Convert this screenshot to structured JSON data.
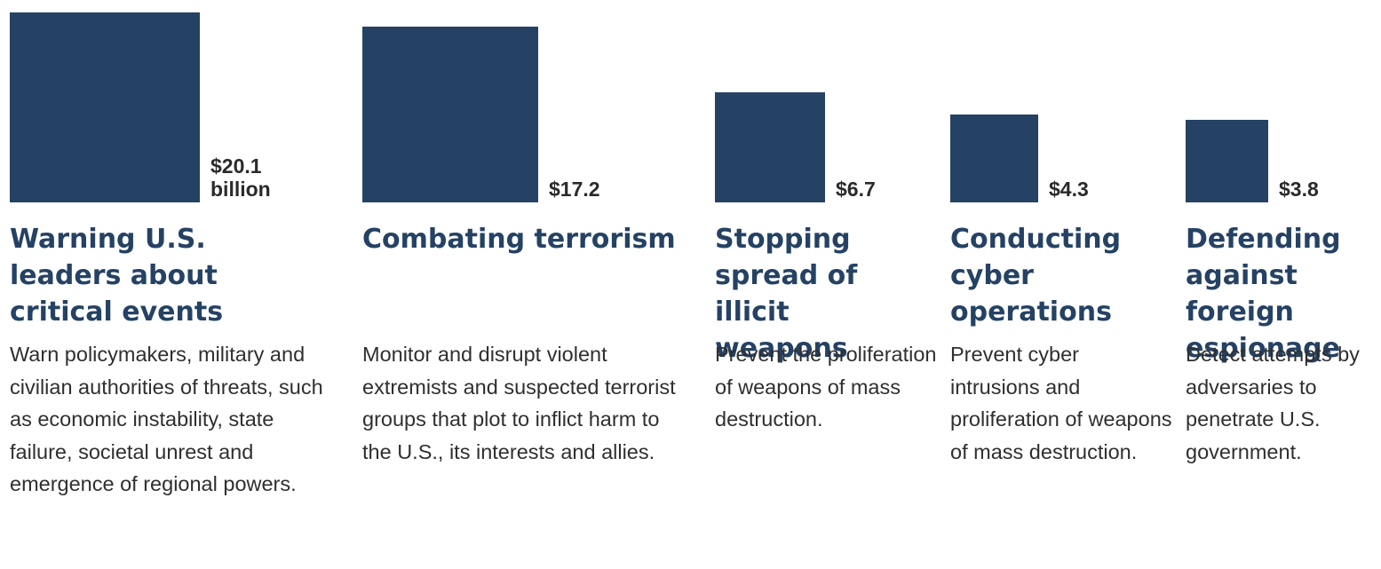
{
  "chart_data": {
    "type": "bar",
    "unit": "billion",
    "categories": [
      "Warning U.S. leaders about critical events",
      "Combating terrorism",
      "Stopping spread of illicit weapons",
      "Conducting cyber operations",
      "Defending against foreign espionage"
    ],
    "values": [
      20.1,
      17.2,
      6.7,
      4.3,
      3.8
    ],
    "value_labels": [
      "$20.1",
      "$17.2",
      "$6.7",
      "$4.3",
      "$3.8"
    ],
    "first_label_unit": "billion",
    "descriptions": [
      "Warn policymakers, military and civilian authorities of threats, such as economic instability, state failure, societal unrest and emergence of regional powers.",
      "Monitor and disrupt violent extremists and suspected terrorist groups that plot to inflict harm to the U.S., its interests and allies.",
      "Prevent the proliferation of weapons of mass destruction.",
      "Prevent cyber intrusions and proliferation of weapons of mass destruction.",
      "Detect attempts by adversaries to penetrate U.S. government."
    ],
    "bar_shape": "square-area",
    "colors": {
      "bar": "#254264",
      "title": "#254264",
      "text": "#2a2a2a"
    },
    "grid": false,
    "legend": "none"
  }
}
